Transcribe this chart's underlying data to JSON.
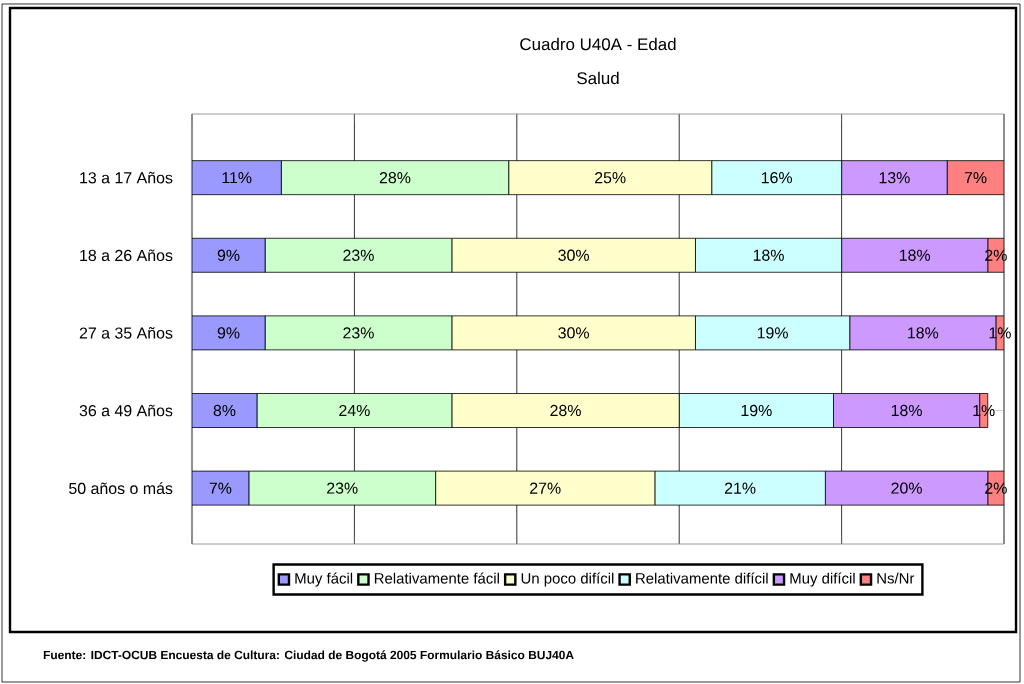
{
  "chart_data": {
    "type": "bar",
    "orientation": "horizontal",
    "stacked": true,
    "title": "Cuadro U40A - Edad",
    "subtitle": "Salud",
    "categories": [
      "13 a 17 Años",
      "18 a 26 Años",
      "27 a 35 Años",
      "36 a 49 Años",
      "50 años o más"
    ],
    "series": [
      {
        "name": "Muy fácil",
        "color": "#9999ff",
        "values": [
          11,
          9,
          9,
          8,
          7
        ],
        "value_labels": [
          "11%",
          "9%",
          "9%",
          "8%",
          "7%"
        ]
      },
      {
        "name": "Relativamente fácil",
        "color": "#ccffcc",
        "values": [
          28,
          23,
          23,
          24,
          23
        ],
        "value_labels": [
          "28%",
          "23%",
          "23%",
          "24%",
          "23%"
        ]
      },
      {
        "name": "Un poco difícil",
        "color": "#ffffcc",
        "values": [
          25,
          30,
          30,
          28,
          27
        ],
        "value_labels": [
          "25%",
          "30%",
          "30%",
          "28%",
          "27%"
        ]
      },
      {
        "name": "Relativamente difícil",
        "color": "#ccffff",
        "values": [
          16,
          18,
          19,
          19,
          21
        ],
        "value_labels": [
          "16%",
          "18%",
          "19%",
          "19%",
          "21%"
        ]
      },
      {
        "name": "Muy difícil",
        "color": "#cc99ff",
        "values": [
          13,
          18,
          18,
          18,
          20
        ],
        "value_labels": [
          "13%",
          "18%",
          "18%",
          "18%",
          "20%"
        ]
      },
      {
        "name": "Ns/Nr",
        "color": "#ff8080",
        "values": [
          7,
          2,
          1,
          1,
          2
        ],
        "value_labels": [
          "7%",
          "2%",
          "1%",
          "1%",
          "2%"
        ]
      }
    ],
    "xlim": [
      0,
      100
    ],
    "xticks": [
      {
        "value": 0,
        "label": null
      },
      {
        "value": 20,
        "label": null
      },
      {
        "value": 40,
        "label": null
      },
      {
        "value": 60,
        "label": null
      },
      {
        "value": 80,
        "label": null
      },
      {
        "value": 100,
        "label": null
      }
    ],
    "tick_labels": "y",
    "grid": "x",
    "legend": "bottom",
    "annotations": [
      "Fuente: IDCT-OCUB Encuesta de Cultura: Ciudad de Bogotá 2005 Formulario Básico BUJ40A"
    ]
  }
}
